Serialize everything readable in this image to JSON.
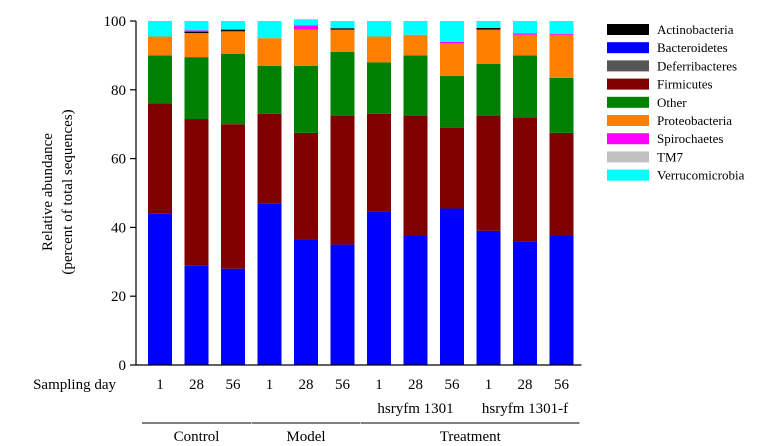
{
  "chart_data": {
    "type": "bar",
    "stacked": true,
    "ylabel": "Relative abundance",
    "ylabel2": "(percent of total sequences)",
    "ylim": [
      0,
      100
    ],
    "yticks": [
      0,
      20,
      40,
      60,
      80,
      100
    ],
    "x_axis_title": "Sampling day",
    "categories": [
      "1",
      "28",
      "56",
      "1",
      "28",
      "56",
      "1",
      "28",
      "56",
      "1",
      "28",
      "56"
    ],
    "sub_groups": [
      {
        "label": "hsryfm 1301",
        "from": 6,
        "to": 8
      },
      {
        "label": "hsryfm 1301-f",
        "from": 9,
        "to": 11
      }
    ],
    "groups": [
      {
        "label": "Control",
        "from": 0,
        "to": 2
      },
      {
        "label": "Model",
        "from": 3,
        "to": 5
      },
      {
        "label": "Treatment",
        "from": 6,
        "to": 11
      }
    ],
    "legend_position": "right",
    "series": [
      {
        "name": "Bacteroidetes",
        "color": "#0000ff",
        "values": [
          44,
          29,
          28,
          47,
          36.5,
          35,
          44.5,
          37.5,
          45.5,
          39,
          36,
          37.5
        ]
      },
      {
        "name": "Firmicutes",
        "color": "#800000",
        "values": [
          32,
          42.5,
          42,
          26,
          31,
          37.5,
          28.5,
          35,
          23.5,
          33.5,
          36,
          30
        ]
      },
      {
        "name": "Other",
        "color": "#008000",
        "values": [
          14,
          18,
          20.5,
          14,
          19.5,
          18.5,
          15,
          17.5,
          15,
          15,
          18,
          16
        ]
      },
      {
        "name": "Proteobacteria",
        "color": "#ff8000",
        "values": [
          5.5,
          7,
          6.5,
          8,
          10.5,
          6.5,
          7.5,
          6,
          9.5,
          10,
          6,
          12.5
        ]
      },
      {
        "name": "Actinobacteria",
        "color": "#000000",
        "values": [
          0,
          0.4,
          0.5,
          0,
          0,
          0.4,
          0,
          0,
          0,
          0.5,
          0,
          0
        ]
      },
      {
        "name": "Deferribacteres",
        "color": "#555555",
        "values": [
          0,
          0,
          0,
          0,
          0,
          0,
          0,
          0,
          0,
          0,
          0,
          0
        ]
      },
      {
        "name": "Spirochaetes",
        "color": "#ff00ff",
        "values": [
          0,
          0.4,
          0,
          0,
          1.2,
          0,
          0,
          0,
          0.4,
          0,
          0.4,
          0.3
        ]
      },
      {
        "name": "TM7",
        "color": "#c0c0c0",
        "values": [
          0,
          0,
          0,
          0,
          0,
          0,
          0,
          0,
          0,
          0,
          0,
          0
        ]
      },
      {
        "name": "Verrucomicrobia",
        "color": "#00ffff",
        "values": [
          4.5,
          2.7,
          2.5,
          5,
          1.8,
          2.1,
          4.5,
          4,
          6.1,
          2,
          3.6,
          3.7
        ]
      }
    ],
    "legend_order": [
      "Actinobacteria",
      "Bacteroidetes",
      "Deferribacteres",
      "Firmicutes",
      "Other",
      "Proteobacteria",
      "Spirochaetes",
      "TM7",
      "Verrucomicrobia"
    ]
  }
}
